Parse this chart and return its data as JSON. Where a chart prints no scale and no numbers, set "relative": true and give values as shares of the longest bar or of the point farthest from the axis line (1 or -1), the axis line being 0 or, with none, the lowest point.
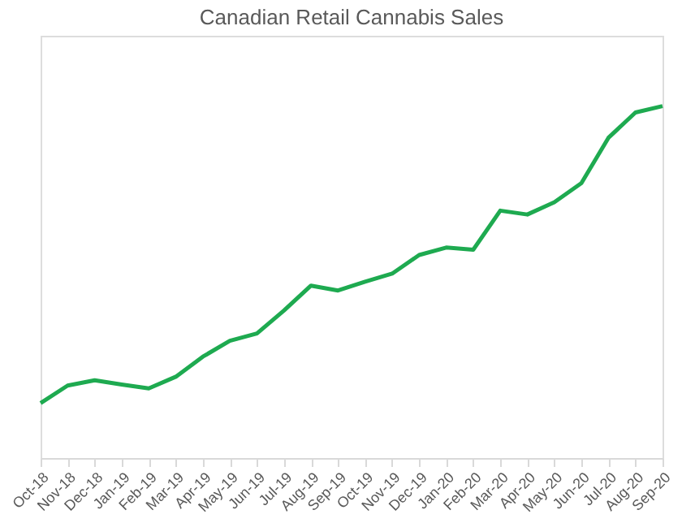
{
  "chart_data": {
    "type": "line",
    "title": "Canadian Retail Cannabis Sales",
    "relative": true,
    "categories": [
      "Oct-18",
      "Nov-18",
      "Dec-18",
      "Jan-19",
      "Feb-19",
      "Mar-19",
      "Apr-19",
      "May-19",
      "Jun-19",
      "Jul-19",
      "Aug-19",
      "Sep-19",
      "Oct-19",
      "Nov-19",
      "Dec-19",
      "Jan-20",
      "Feb-20",
      "Mar-20",
      "Apr-20",
      "May-20",
      "Jun-20",
      "Jul-20",
      "Aug-20",
      "Sep-20"
    ],
    "series": [
      {
        "color": "#1eaa50",
        "values": [
          0.156,
          0.206,
          0.221,
          0.209,
          0.198,
          0.231,
          0.288,
          0.333,
          0.354,
          0.419,
          0.49,
          0.476,
          0.501,
          0.524,
          0.577,
          0.598,
          0.592,
          0.703,
          0.692,
          0.727,
          0.781,
          0.91,
          0.982,
          1
        ]
      }
    ]
  }
}
